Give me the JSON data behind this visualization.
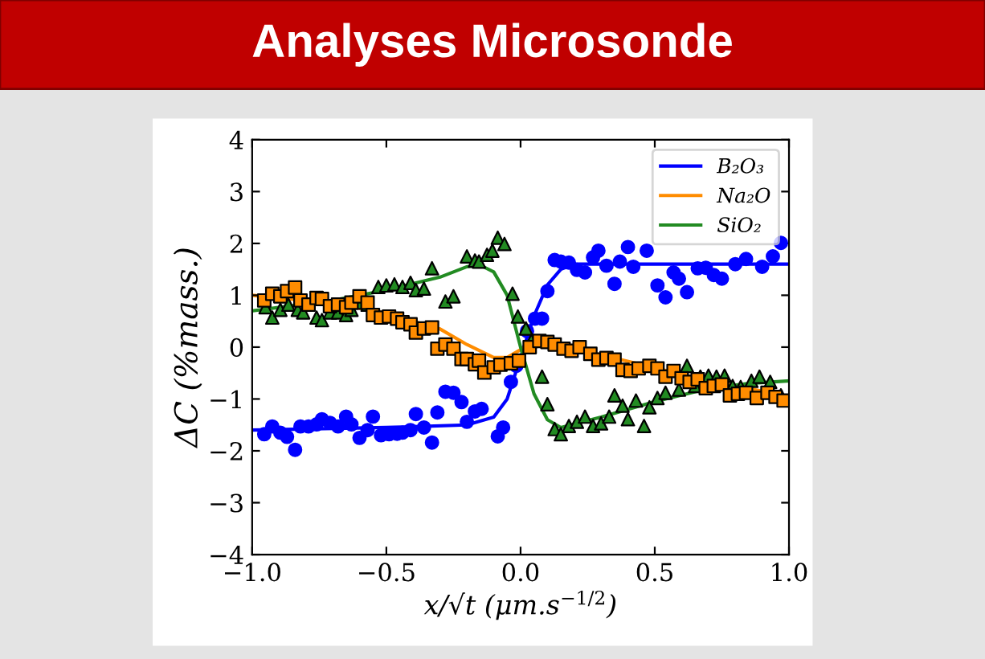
{
  "chart_data": {
    "type": "scatter",
    "title": "Analyses Microsonde",
    "xlabel": "x/√t (μm.s$^{−1/2}$)",
    "ylabel": "ΔC (%mass.)",
    "xlim": [
      -1,
      1
    ],
    "ylim": [
      -4,
      4
    ],
    "xticks": [
      {
        "value": -1,
        "label": "−1.0"
      },
      {
        "value": -0.5,
        "label": "−0.5"
      },
      {
        "value": 0,
        "label": "0.0"
      },
      0.5,
      {
        "value": 1,
        "label": "1.0"
      }
    ],
    "yticks": [
      {
        "value": -4,
        "label": "−4"
      },
      {
        "value": -3,
        "label": "−3"
      },
      {
        "value": -2,
        "label": "−2"
      },
      {
        "value": -1,
        "label": "−1"
      },
      0,
      1,
      2,
      3,
      4
    ],
    "grid": false,
    "legend": "top right",
    "series": [
      {
        "marker": "circle",
        "color": "#0000ff",
        "x": [
          -0.955,
          -0.925,
          -0.895,
          -0.87,
          -0.84,
          -0.82,
          -0.79,
          -0.76,
          -0.74,
          -0.71,
          -0.68,
          -0.65,
          -0.63,
          -0.6,
          -0.57,
          -0.55,
          -0.52,
          -0.49,
          -0.46,
          -0.44,
          -0.41,
          -0.39,
          -0.36,
          -0.33,
          -0.31,
          -0.28,
          -0.25,
          -0.22,
          -0.2,
          -0.17,
          -0.145,
          -0.085,
          -0.065,
          -0.036,
          -0.016,
          0.024,
          0.054,
          0.08,
          0.1,
          0.127,
          0.15,
          0.18,
          0.21,
          0.24,
          0.27,
          0.29,
          0.32,
          0.35,
          0.37,
          0.4,
          0.42,
          0.47,
          0.51,
          0.54,
          0.57,
          0.59,
          0.62,
          0.66,
          0.69,
          0.72,
          0.75,
          0.8,
          0.84,
          0.9,
          0.94,
          0.97
        ],
        "values": [
          -1.68,
          -1.53,
          -1.65,
          -1.73,
          -1.98,
          -1.53,
          -1.53,
          -1.49,
          -1.39,
          -1.46,
          -1.53,
          -1.34,
          -1.49,
          -1.75,
          -1.6,
          -1.34,
          -1.7,
          -1.68,
          -1.67,
          -1.65,
          -1.6,
          -1.29,
          -1.55,
          -1.84,
          -1.26,
          -0.86,
          -0.88,
          -1.06,
          -1.44,
          -1.24,
          -1.19,
          -1.72,
          -1.55,
          -0.67,
          -0.36,
          0.31,
          0.55,
          0.55,
          1.08,
          1.68,
          1.65,
          1.63,
          1.49,
          1.44,
          1.73,
          1.86,
          1.57,
          1.22,
          1.65,
          1.93,
          1.55,
          1.86,
          1.19,
          0.96,
          1.44,
          1.32,
          1.06,
          1.52,
          1.53,
          1.39,
          1.32,
          1.6,
          1.7,
          1.55,
          1.75,
          2.01
        ]
      },
      {
        "marker": "square",
        "color": "#ff8c00",
        "x": [
          -0.955,
          -0.925,
          -0.895,
          -0.87,
          -0.84,
          -0.82,
          -0.79,
          -0.76,
          -0.74,
          -0.71,
          -0.68,
          -0.65,
          -0.63,
          -0.6,
          -0.57,
          -0.55,
          -0.52,
          -0.49,
          -0.46,
          -0.44,
          -0.41,
          -0.39,
          -0.36,
          -0.33,
          -0.31,
          -0.28,
          -0.25,
          -0.22,
          -0.2,
          -0.17,
          -0.155,
          -0.135,
          -0.1,
          -0.075,
          -0.036,
          -0.006,
          0.034,
          0.07,
          0.1,
          0.127,
          0.16,
          0.19,
          0.22,
          0.26,
          0.29,
          0.32,
          0.35,
          0.38,
          0.41,
          0.44,
          0.48,
          0.51,
          0.54,
          0.57,
          0.6,
          0.63,
          0.66,
          0.69,
          0.72,
          0.75,
          0.78,
          0.81,
          0.84,
          0.88,
          0.92,
          0.95,
          0.98
        ],
        "values": [
          0.9,
          1.03,
          0.98,
          1.08,
          1.15,
          0.9,
          0.82,
          0.95,
          0.93,
          0.79,
          0.82,
          0.77,
          0.86,
          0.98,
          0.86,
          0.62,
          0.57,
          0.59,
          0.55,
          0.48,
          0.44,
          0.28,
          0.36,
          0.38,
          -0.03,
          0.05,
          -0.03,
          -0.23,
          -0.23,
          -0.33,
          -0.26,
          -0.49,
          -0.39,
          -0.34,
          -0.31,
          -0.26,
          0.0,
          0.12,
          0.1,
          0.05,
          -0.03,
          -0.07,
          0.0,
          -0.13,
          -0.24,
          -0.21,
          -0.24,
          -0.44,
          -0.46,
          -0.41,
          -0.36,
          -0.41,
          -0.57,
          -0.46,
          -0.6,
          -0.67,
          -0.62,
          -0.79,
          -0.75,
          -0.72,
          -0.93,
          -0.9,
          -0.88,
          -0.98,
          -0.88,
          -0.96,
          -1.03
        ]
      },
      {
        "marker": "triangle",
        "color": "#228b22",
        "x": [
          -0.95,
          -0.925,
          -0.895,
          -0.865,
          -0.83,
          -0.81,
          -0.76,
          -0.74,
          -0.71,
          -0.68,
          -0.65,
          -0.63,
          -0.6,
          -0.57,
          -0.53,
          -0.5,
          -0.47,
          -0.44,
          -0.41,
          -0.39,
          -0.36,
          -0.33,
          -0.28,
          -0.25,
          -0.2,
          -0.17,
          -0.155,
          -0.125,
          -0.105,
          -0.085,
          -0.06,
          -0.03,
          -0.01,
          0.02,
          0.04,
          0.08,
          0.1,
          0.127,
          0.15,
          0.18,
          0.21,
          0.24,
          0.27,
          0.3,
          0.33,
          0.35,
          0.38,
          0.4,
          0.43,
          0.46,
          0.48,
          0.51,
          0.54,
          0.59,
          0.62,
          0.65,
          0.67,
          0.7,
          0.73,
          0.76,
          0.79,
          0.82,
          0.86,
          0.89,
          0.93,
          0.97
        ],
        "values": [
          0.77,
          0.57,
          0.72,
          0.82,
          0.72,
          0.67,
          0.57,
          0.52,
          0.67,
          0.67,
          0.62,
          0.72,
          0.86,
          0.82,
          1.16,
          1.19,
          1.21,
          1.16,
          1.24,
          1.1,
          1.13,
          1.52,
          0.88,
          0.98,
          1.75,
          1.67,
          1.65,
          1.78,
          1.86,
          2.11,
          1.99,
          1.03,
          0.59,
          0.36,
          0.12,
          -0.57,
          -1.1,
          -1.58,
          -1.68,
          -1.52,
          -1.44,
          -1.34,
          -1.52,
          -1.47,
          -1.34,
          -0.93,
          -1.13,
          -1.39,
          -1.03,
          -1.52,
          -1.16,
          -0.98,
          -0.88,
          -0.82,
          -0.36,
          -0.75,
          -0.57,
          -0.55,
          -0.57,
          -0.55,
          -0.75,
          -0.77,
          -0.65,
          -0.57,
          -0.67,
          -0.93
        ]
      },
      {
        "type": "line",
        "name": "B₂O₃",
        "color": "#0000ff",
        "x": [
          -1,
          -0.5,
          -0.2,
          -0.1,
          -0.05,
          0,
          0.05,
          0.1,
          0.15,
          0.2,
          0.4,
          0.6,
          1
        ],
        "values": [
          -1.6,
          -1.55,
          -1.5,
          -1.35,
          -1.0,
          -0.2,
          0.6,
          1.2,
          1.5,
          1.6,
          1.6,
          1.6,
          1.6
        ]
      },
      {
        "type": "line",
        "name": "Na₂O",
        "color": "#ff8c00",
        "x": [
          -1,
          -0.7,
          -0.5,
          -0.3,
          -0.2,
          -0.1,
          -0.05,
          0,
          0.05,
          0.1,
          0.3,
          0.5,
          0.7,
          1
        ],
        "values": [
          1.0,
          0.85,
          0.65,
          0.35,
          0.05,
          -0.2,
          -0.2,
          -0.05,
          0.1,
          0.05,
          -0.15,
          -0.4,
          -0.65,
          -0.95
        ]
      },
      {
        "type": "line",
        "name": "SiO₂",
        "color": "#228b22",
        "x": [
          -1,
          -0.7,
          -0.5,
          -0.3,
          -0.2,
          -0.15,
          -0.1,
          -0.05,
          0,
          0.05,
          0.1,
          0.15,
          0.3,
          0.5,
          0.7,
          0.85,
          1
        ],
        "values": [
          0.7,
          0.9,
          1.1,
          1.35,
          1.55,
          1.58,
          1.45,
          1.0,
          0.0,
          -0.9,
          -1.4,
          -1.55,
          -1.35,
          -1.05,
          -0.8,
          -0.7,
          -0.65
        ]
      }
    ]
  }
}
